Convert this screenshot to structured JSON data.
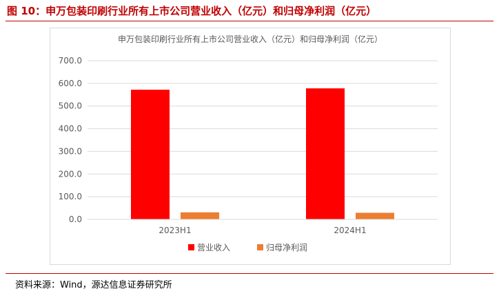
{
  "figure_title": "图 10：申万包装印刷行业所有上市公司营业收入（亿元）和归母净利润（亿元）",
  "source": "资料来源：Wind，源达信息证券研究所",
  "colors": {
    "accent": "#c00000",
    "revenue": "#ff0000",
    "profit": "#ed7d31"
  },
  "chart_data": {
    "type": "bar",
    "title": "申万包装印刷行业所有上市公司营业收入（亿元）和归母净利润（亿元）",
    "categories": [
      "2023H1",
      "2024H1"
    ],
    "series": [
      {
        "name": "营业收入",
        "values": [
          572.0,
          578.0
        ]
      },
      {
        "name": "归母净利润",
        "values": [
          31.0,
          29.0
        ]
      }
    ],
    "y_ticks": [
      "0.0",
      "100.0",
      "200.0",
      "300.0",
      "400.0",
      "500.0",
      "600.0",
      "700.0"
    ],
    "ylim": [
      0,
      700
    ],
    "xlabel": "",
    "ylabel": "",
    "legend": "bottom",
    "grid": true
  }
}
